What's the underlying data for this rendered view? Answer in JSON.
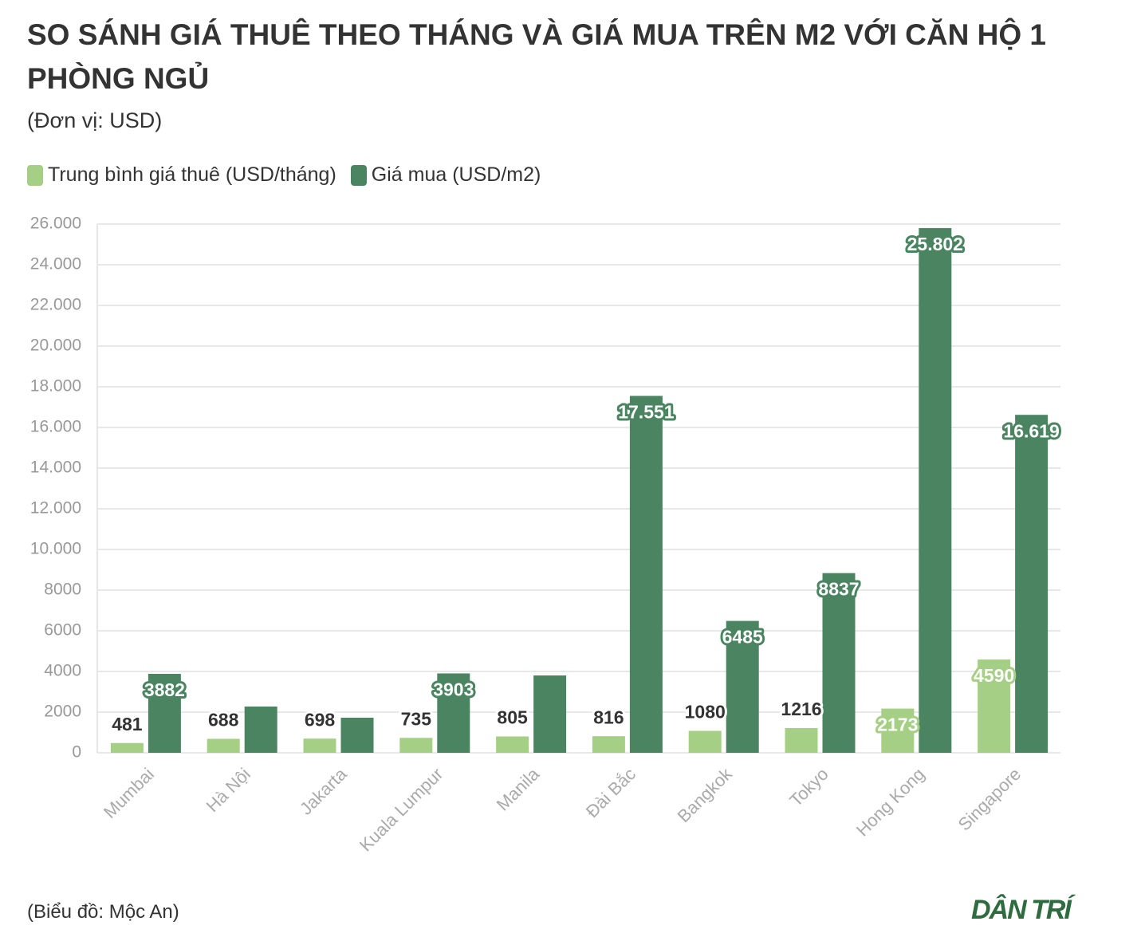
{
  "chart_data": {
    "type": "bar",
    "title": "SO SÁNH GIÁ THUÊ THEO THÁNG VÀ GIÁ MUA TRÊN M2 VỚI CĂN HỘ 1 PHÒNG NGỦ",
    "subtitle": "(Đơn vị: USD)",
    "source": "(Biểu đồ: Mộc An)",
    "logo": "DÂN TRÍ",
    "categories": [
      "Mumbai",
      "Hà Nội",
      "Jakarta",
      "Kuala Lumpur",
      "Manila",
      "Đài Bắc",
      "Bangkok",
      "Tokyo",
      "Hong Kong",
      "Singapore"
    ],
    "series": [
      {
        "name": "Trung bình giá thuê (USD/tháng)",
        "color": "#a5cf84",
        "values": [
          481,
          688,
          698,
          735,
          805,
          816,
          1080,
          1216,
          2173,
          4590
        ]
      },
      {
        "name": "Giá mua (USD/m2)",
        "color": "#4a8460",
        "values": [
          3882,
          2275,
          1725,
          3903,
          3804,
          17551,
          6485,
          8837,
          25802,
          16619
        ],
        "value_labels": [
          "3882",
          null,
          null,
          "3903",
          null,
          "17.551",
          "6485",
          "8837",
          "25.802",
          "16.619"
        ]
      }
    ],
    "ylim": [
      0,
      26000
    ],
    "yticks": [
      0,
      2000,
      4000,
      6000,
      8000,
      {
        "value": 10000,
        "label": "10.000"
      },
      {
        "value": 12000,
        "label": "12.000"
      },
      {
        "value": 14000,
        "label": "14.000"
      },
      {
        "value": 16000,
        "label": "16.000"
      },
      {
        "value": 18000,
        "label": "18.000"
      },
      {
        "value": 20000,
        "label": "20.000"
      },
      {
        "value": 22000,
        "label": "22.000"
      },
      {
        "value": 24000,
        "label": "24.000"
      },
      {
        "value": 26000,
        "label": "26.000"
      }
    ],
    "grid": true
  }
}
